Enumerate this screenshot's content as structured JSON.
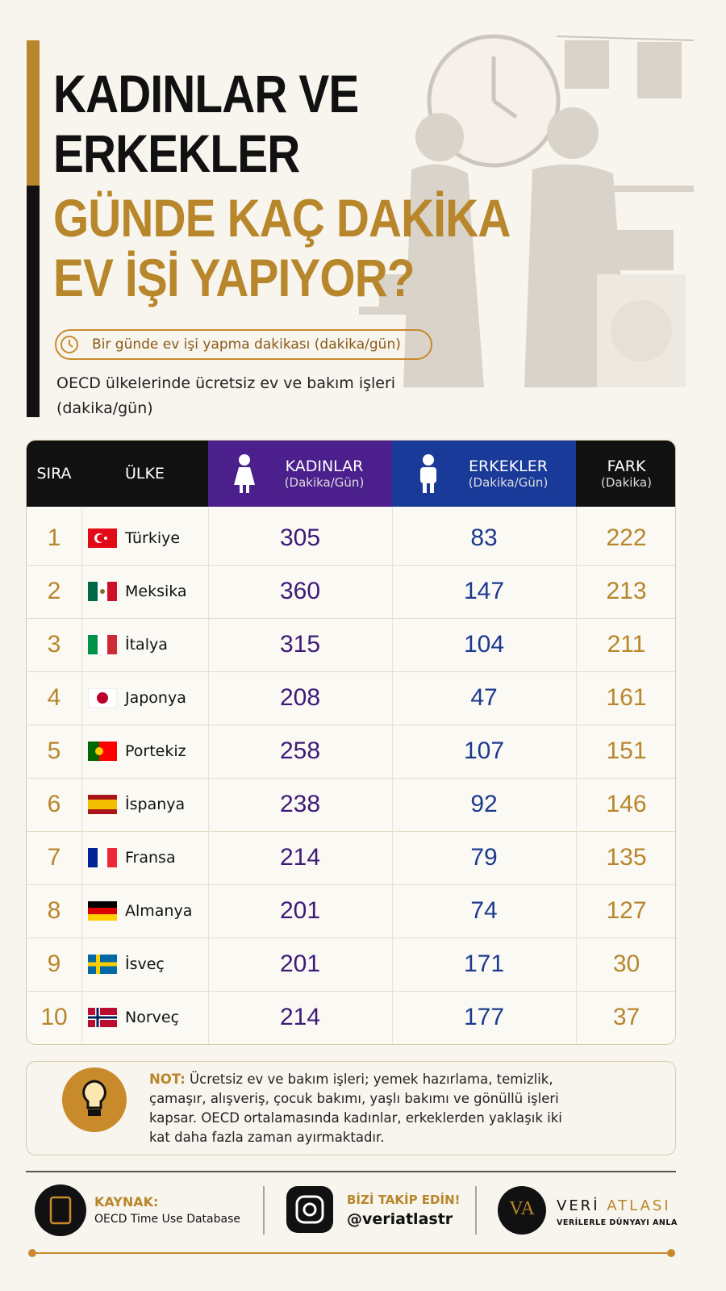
{
  "header": {
    "title_lines": [
      "KADINLAR VE",
      "ERKEKLER"
    ],
    "subtitle_lines": [
      "GÜNDE KAÇ DAKİKA",
      "EV İŞİ YAPIYOR?"
    ],
    "badge": "Bir günde ev işi yapma dakikası (dakika/gün)",
    "description": "OECD ülkelerinde ücretsiz ev ve bakım işleri (dakika/gün)"
  },
  "table": {
    "columns": [
      {
        "label": "SIRA"
      },
      {
        "label": "ÜLKE"
      },
      {
        "label": "KADINLAR",
        "unit": "(Dakika/Gün)"
      },
      {
        "label": "ERKEKLER",
        "unit": "(Dakika/Gün)"
      },
      {
        "label": "FARK",
        "unit": "(Dakika)"
      }
    ],
    "rows": [
      [
        1,
        "Türkiye",
        305,
        83,
        222
      ],
      [
        2,
        "Meksika",
        360,
        147,
        213
      ],
      [
        3,
        "İtalya",
        315,
        104,
        211
      ],
      [
        4,
        "Japonya",
        208,
        47,
        161
      ],
      [
        5,
        "Portekiz",
        258,
        107,
        151
      ],
      [
        6,
        "İspanya",
        238,
        92,
        146
      ],
      [
        7,
        "Fransa",
        214,
        79,
        135
      ],
      [
        8,
        "Almanya",
        201,
        74,
        127
      ],
      [
        9,
        "İsveç",
        201,
        171,
        30
      ],
      [
        10,
        "Norveç",
        214,
        177,
        37
      ]
    ]
  },
  "note": {
    "label": "NOT:",
    "text": "Ücretsiz ev ve bakım işleri; yemek hazırlama, temizlik, çamaşır, alışveriş, çocuk bakımı, yaşlı bakımı ve gönüllü işleri kapsar. OECD ortalamasında kadınlar, erkeklerden yaklaşık iki kat daha fazla zaman ayırmaktadır."
  },
  "footer": {
    "source_label": "KAYNAK:",
    "source": "OECD Time Use Database",
    "follow_label": "BİZİ TAKİP EDİN!",
    "handle": "@veriatlastr",
    "logo": "VA",
    "brand_1": "VERİ",
    "brand_2": "ATLASI",
    "tagline": "VERİLERLE DÜNYAYI ANLA"
  }
}
